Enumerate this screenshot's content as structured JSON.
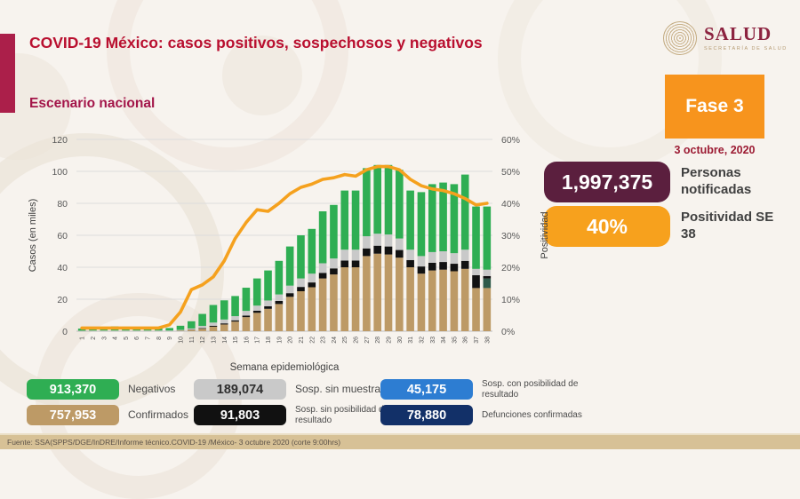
{
  "header": {
    "title": "COVID-19 México: casos positivos, sospechosos y negativos",
    "subtitle": "Escenario nacional",
    "logo": {
      "word": "SALUD",
      "sub": "SECRETARÍA DE SALUD"
    }
  },
  "phase": {
    "label": "Fase 3",
    "date": "3 octubre, 2020"
  },
  "stats": [
    {
      "value": "1,997,375",
      "label": "Personas notificadas",
      "color": "#5b1f3e"
    },
    {
      "value": "40%",
      "label": "Positividad SE 38",
      "color": "#f7a11d"
    }
  ],
  "chart_data": {
    "type": "bar",
    "x": [
      1,
      2,
      3,
      4,
      5,
      6,
      7,
      8,
      9,
      10,
      11,
      12,
      13,
      14,
      15,
      16,
      17,
      18,
      19,
      20,
      21,
      22,
      23,
      24,
      25,
      26,
      27,
      28,
      29,
      30,
      31,
      32,
      33,
      34,
      35,
      36,
      37,
      38
    ],
    "xlabel": "Semana epidemiológica",
    "ylabel_left": "Casos (en miles)",
    "ylabel_right": "Positividad",
    "ylim_left": [
      0,
      120
    ],
    "ylim_right": [
      0,
      60
    ],
    "yticks_left": [
      "0",
      "20",
      "40",
      "60",
      "80",
      "100",
      "120"
    ],
    "yticks_right": [
      "0%",
      "10%",
      "20%",
      "30%",
      "40%",
      "50%",
      "60%"
    ],
    "grid": true,
    "legend_position": "bottom",
    "series": [
      {
        "name": "Confirmados",
        "color": "#bd9a66",
        "values": [
          0.1,
          0.1,
          0.1,
          0.1,
          0.1,
          0.1,
          0.1,
          0.1,
          0.1,
          0.3,
          0.8,
          1.5,
          2.8,
          4.2,
          6,
          8.8,
          11.5,
          14,
          17,
          21.5,
          25,
          27.5,
          33,
          35.5,
          40,
          40,
          47,
          48.5,
          48,
          46,
          40,
          36,
          38,
          38.5,
          37.5,
          39,
          27,
          27
        ]
      },
      {
        "name": "Sosp. con posibilidad de resultado",
        "color": "#2e5a4a",
        "values": [
          0,
          0,
          0,
          0,
          0,
          0,
          0,
          0,
          0,
          0,
          0,
          0,
          0,
          0,
          0,
          0,
          0,
          0,
          0,
          0,
          0,
          0,
          0,
          0,
          0,
          0,
          0,
          0,
          0,
          0,
          0,
          0,
          0,
          0,
          0,
          0,
          0,
          6
        ]
      },
      {
        "name": "Sosp. sin posibilidad de resultado",
        "color": "#121212",
        "values": [
          0,
          0,
          0,
          0,
          0,
          0,
          0,
          0,
          0,
          0.1,
          0.2,
          0.4,
          0.6,
          0.7,
          0.8,
          1,
          1.3,
          1.6,
          1.9,
          2.3,
          2.7,
          3,
          3.5,
          3.8,
          4.2,
          4.2,
          4.8,
          5,
          5,
          4.8,
          4.5,
          4.5,
          4.8,
          4.8,
          4.7,
          5,
          8,
          1.5
        ]
      },
      {
        "name": "Sosp. sin muestra",
        "color": "#c9c9c9",
        "values": [
          0.2,
          0.3,
          0.3,
          0.3,
          0.3,
          0.3,
          0.3,
          0.3,
          0.3,
          0.4,
          0.7,
          1.4,
          2,
          2.4,
          2.6,
          2.9,
          3.2,
          3.6,
          4.1,
          4.7,
          5.3,
          5.5,
          6,
          6.2,
          6.8,
          6.8,
          7.6,
          7.5,
          7.5,
          7.2,
          6.5,
          6.5,
          6.7,
          6.7,
          6.6,
          7,
          4,
          4
        ]
      },
      {
        "name": "Negativos",
        "color": "#2fae53",
        "values": [
          1.3,
          1.8,
          2.2,
          2.6,
          2.4,
          2.2,
          2.2,
          1.8,
          1.6,
          2.6,
          4.5,
          7.5,
          11,
          12,
          12.6,
          14.5,
          17,
          18.8,
          21,
          24.5,
          27,
          28,
          32.5,
          33.5,
          37,
          37,
          42.6,
          43,
          43.5,
          43,
          37,
          40,
          42.5,
          43,
          43.2,
          47,
          39,
          39.5
        ]
      }
    ],
    "line": {
      "name": "Positividad",
      "color": "#f5a11e",
      "axis": "right",
      "values": [
        1,
        1,
        1,
        1,
        1,
        1,
        1,
        1,
        2,
        6,
        13,
        14.5,
        17,
        22,
        29,
        34,
        38,
        37.5,
        40,
        43,
        45,
        46,
        47.5,
        48,
        49,
        48.5,
        50.5,
        51.5,
        51.5,
        50.5,
        47.5,
        45.5,
        44.5,
        44,
        43,
        41.5,
        39.5,
        40
      ]
    }
  },
  "legend": [
    {
      "value": "913,370",
      "label": "Negativos",
      "chip_color": "#2fae53",
      "text_color": "#ffffff"
    },
    {
      "value": "757,953",
      "label": "Confirmados",
      "chip_color": "#bd9a66",
      "text_color": "#ffffff"
    },
    {
      "value": "189,074",
      "label": "Sosp. sin muestra",
      "chip_color": "#c9c9c9",
      "text_color": "#2f2f2f"
    },
    {
      "value": "91,803",
      "label": "Sosp. sin posibilidad de resultado",
      "chip_color": "#111111",
      "text_color": "#ffffff"
    },
    {
      "value": "45,175",
      "label": "Sosp. con posibilidad de resultado",
      "chip_color": "#2d7dd2",
      "text_color": "#ffffff"
    },
    {
      "value": "78,880",
      "label": "Defunciones confirmadas",
      "chip_color": "#123068",
      "text_color": "#ffffff"
    }
  ],
  "footer": {
    "source": "Fuente: SSA(SPPS/DGE/InDRE/Informe técnico.COVID-19 /México- 3 octubre 2020 (corte 9:00hrs)"
  }
}
